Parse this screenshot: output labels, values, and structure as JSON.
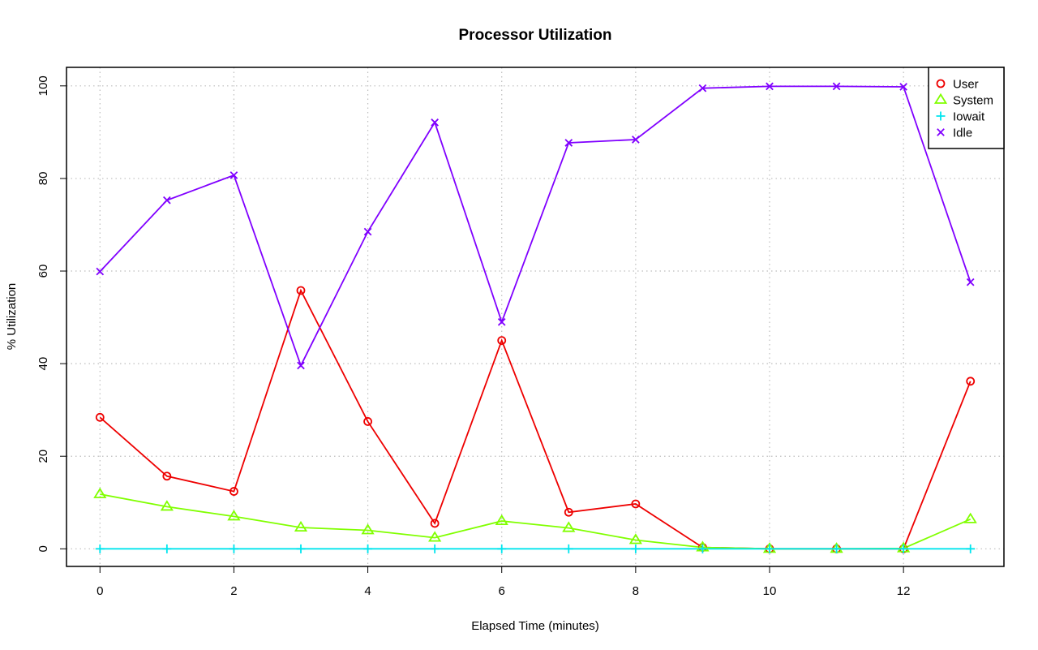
{
  "chart_data": {
    "type": "line",
    "title": "Processor Utilization",
    "xlabel": "Elapsed Time (minutes)",
    "ylabel": "% Utilization",
    "x": [
      0,
      1,
      2,
      3,
      4,
      5,
      6,
      7,
      8,
      9,
      10,
      11,
      12,
      13
    ],
    "xlim": [
      -0.5,
      13.5
    ],
    "ylim": [
      -3.8,
      104
    ],
    "xticks": [
      0,
      2,
      4,
      6,
      8,
      10,
      12
    ],
    "yticks": [
      0,
      20,
      40,
      60,
      80,
      100
    ],
    "grid": true,
    "legend_position": "top-right",
    "series": [
      {
        "name": "User",
        "color": "#ee0000",
        "marker": "circle",
        "values": [
          28.4,
          15.7,
          12.4,
          55.8,
          27.5,
          5.5,
          45,
          7.9,
          9.7,
          0.3,
          0,
          0,
          0,
          36.2
        ]
      },
      {
        "name": "System",
        "color": "#80ff00",
        "marker": "triangle",
        "values": [
          11.8,
          9.1,
          7,
          4.6,
          4,
          2.4,
          6,
          4.5,
          1.9,
          0.3,
          0,
          0,
          0.1,
          6.4
        ]
      },
      {
        "name": "Iowait",
        "color": "#00e5ee",
        "marker": "plus",
        "values": [
          0,
          0,
          0,
          0,
          0,
          0,
          0,
          0,
          0,
          0,
          0,
          0,
          0,
          0
        ]
      },
      {
        "name": "Idle",
        "color": "#8000ff",
        "marker": "cross",
        "values": [
          59.9,
          75.3,
          80.7,
          39.6,
          68.5,
          92.1,
          49,
          87.7,
          88.4,
          99.5,
          99.9,
          99.9,
          99.8,
          57.6
        ]
      }
    ]
  }
}
